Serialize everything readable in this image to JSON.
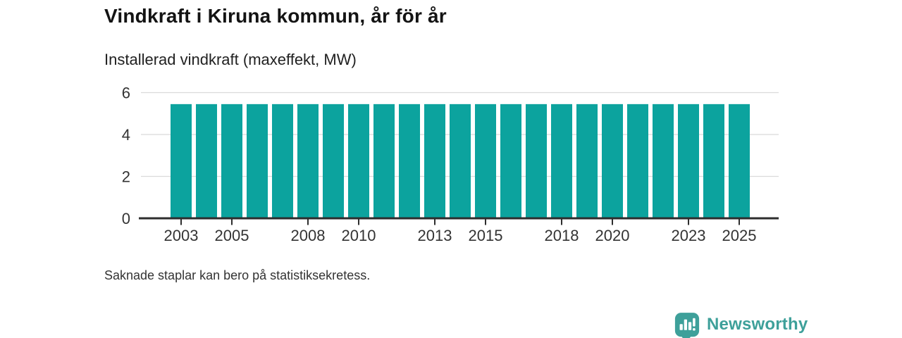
{
  "header": {
    "title": "Vindkraft i Kiruna kommun, år för år",
    "subtitle": "Installerad vindkraft (maxeffekt, MW)"
  },
  "footer": {
    "note": "Saknade staplar kan bero på statistiksekretess.",
    "brand": "Newsworthy"
  },
  "colors": {
    "bar": "#0CA39E",
    "grid": "#DBDBDB",
    "axis": "#2E2E2E",
    "tick_text": "#333333",
    "brand": "#3EA09A"
  },
  "chart_data": {
    "type": "bar",
    "title": "Vindkraft i Kiruna kommun, år för år",
    "subtitle": "Installerad vindkraft (maxeffekt, MW)",
    "xlabel": "",
    "ylabel": "Installerad vindkraft (maxeffekt, MW)",
    "categories": [
      "2003",
      "2004",
      "2005",
      "2006",
      "2007",
      "2008",
      "2009",
      "2010",
      "2011",
      "2012",
      "2013",
      "2014",
      "2015",
      "2016",
      "2017",
      "2018",
      "2019",
      "2020",
      "2021",
      "2022",
      "2023",
      "2024",
      "2025"
    ],
    "values": [
      5.45,
      5.45,
      5.45,
      5.45,
      5.45,
      5.45,
      5.45,
      5.45,
      5.45,
      5.45,
      5.45,
      5.45,
      5.45,
      5.45,
      5.45,
      5.45,
      5.45,
      5.45,
      5.45,
      5.45,
      5.45,
      5.45,
      5.45
    ],
    "ylim": [
      0,
      6
    ],
    "yticks": [
      0,
      2,
      4,
      6
    ],
    "xticks": [
      "2003",
      "2005",
      "2008",
      "2010",
      "2013",
      "2015",
      "2018",
      "2020",
      "2023",
      "2025"
    ],
    "grid": true,
    "legend": "none",
    "bar_color": "#0CA39E",
    "note": "Saknade staplar kan bero på statistiksekretess."
  }
}
